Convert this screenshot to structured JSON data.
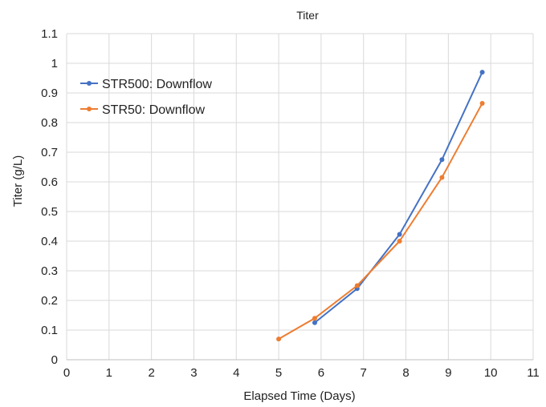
{
  "chart_data": {
    "type": "line",
    "title": "Titer",
    "xlabel": "Elapsed Time (Days)",
    "ylabel": "Titer (g/L)",
    "xlim": [
      0,
      11
    ],
    "ylim": [
      0,
      1.1
    ],
    "x_ticks": [
      "0",
      "1",
      "2",
      "3",
      "4",
      "5",
      "6",
      "7",
      "8",
      "9",
      "10",
      "11"
    ],
    "y_ticks": [
      "0",
      "0.1",
      "0.2",
      "0.3",
      "0.4",
      "0.5",
      "0.6",
      "0.7",
      "0.8",
      "0.9",
      "1",
      "1.1"
    ],
    "grid": true,
    "legend_position": "top-left",
    "series": [
      {
        "name": "STR500: Downflow",
        "color": "#4472C4",
        "x": [
          5.85,
          6.85,
          7.85,
          8.85,
          9.8
        ],
        "y": [
          0.125,
          0.24,
          0.423,
          0.675,
          0.97
        ]
      },
      {
        "name": "STR50: Downflow",
        "color": "#ED7D31",
        "x": [
          5.0,
          5.85,
          6.85,
          7.85,
          8.85,
          9.8
        ],
        "y": [
          0.07,
          0.14,
          0.25,
          0.4,
          0.615,
          0.865
        ]
      }
    ]
  }
}
